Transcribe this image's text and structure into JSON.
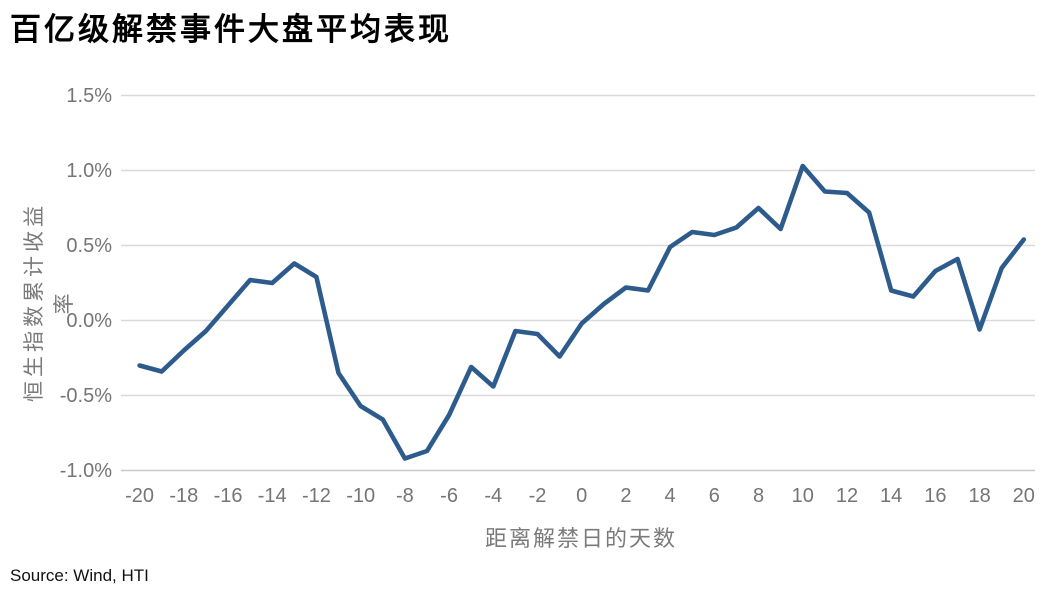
{
  "title": "百亿级解禁事件大盘平均表现",
  "source": "Source: Wind, HTI",
  "colors": {
    "line": "#2d5c8c",
    "gridline": "#d9d9d9",
    "axis_line": "#c9c9c9",
    "axis_text": "#757575",
    "title_text": "#000000"
  },
  "chart_data": {
    "type": "line",
    "title": "百亿级解禁事件大盘平均表现",
    "xlabel": "距离解禁日的天数",
    "ylabel": "恒生指数累计收益率",
    "unit": "%",
    "x": [
      -20,
      -19,
      -18,
      -17,
      -16,
      -15,
      -14,
      -13,
      -12,
      -11,
      -10,
      -9,
      -8,
      -7,
      -6,
      -5,
      -4,
      -3,
      -2,
      -1,
      0,
      1,
      2,
      3,
      4,
      5,
      6,
      7,
      8,
      9,
      10,
      11,
      12,
      13,
      14,
      15,
      16,
      17,
      18,
      19,
      20
    ],
    "values": [
      -0.3,
      -0.34,
      -0.2,
      -0.07,
      0.1,
      0.27,
      0.25,
      0.38,
      0.29,
      -0.35,
      -0.57,
      -0.66,
      -0.92,
      -0.87,
      -0.63,
      -0.31,
      -0.44,
      -0.07,
      -0.09,
      -0.24,
      -0.02,
      0.11,
      0.22,
      0.2,
      0.49,
      0.59,
      0.57,
      0.62,
      0.75,
      0.61,
      1.03,
      0.86,
      0.85,
      0.72,
      0.2,
      0.16,
      0.33,
      0.41,
      -0.06,
      0.35,
      0.54
    ],
    "ylim": [
      -1.0,
      1.5
    ],
    "ytick_values": [
      1.5,
      1.0,
      0.5,
      0.0,
      -0.5,
      -1.0
    ],
    "ytick_labels": [
      "1.5%",
      "1.0%",
      "0.5%",
      "0.0%",
      "-0.5%",
      "-1.0%"
    ],
    "xtick_values": [
      -20,
      -18,
      -16,
      -14,
      -12,
      -10,
      -8,
      -6,
      -4,
      -2,
      0,
      2,
      4,
      6,
      8,
      10,
      12,
      14,
      16,
      18,
      20
    ],
    "grid": "horizontal",
    "legend": "none"
  }
}
